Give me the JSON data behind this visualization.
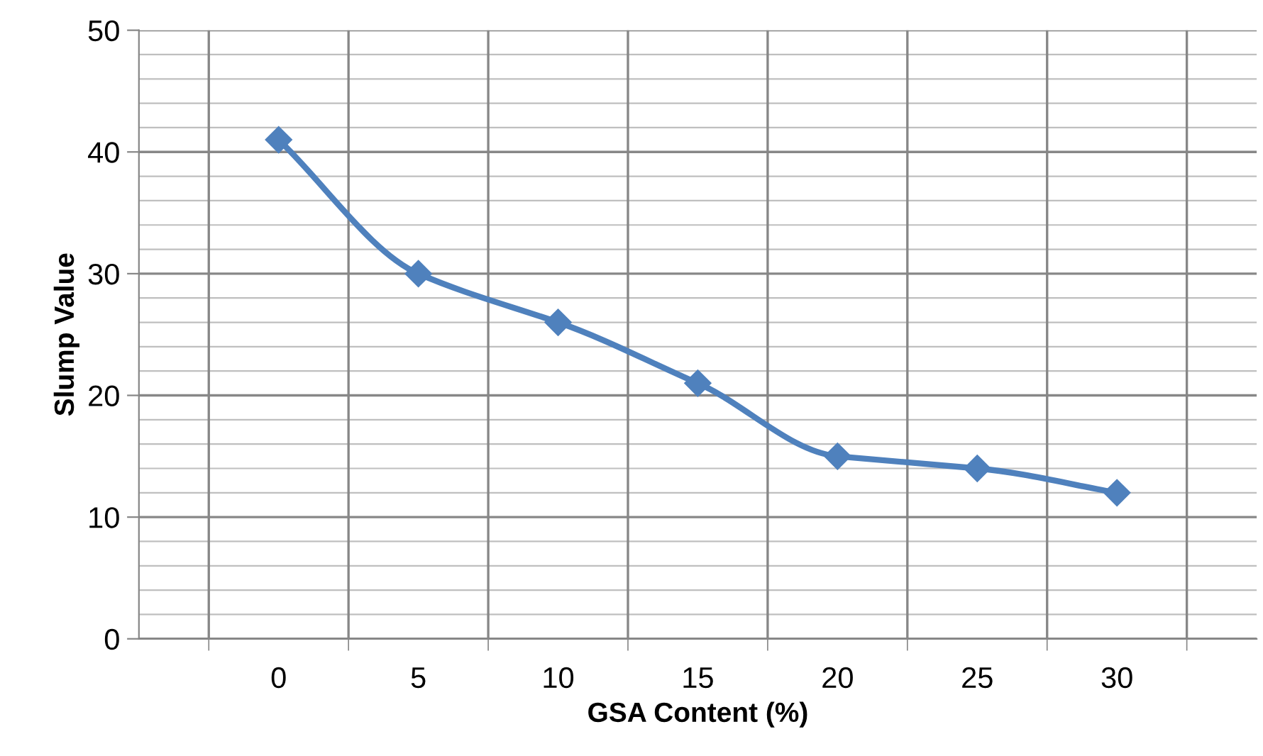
{
  "chart_data": {
    "type": "line",
    "xlabel": "GSA Content (%)",
    "ylabel": "Slump Value",
    "categories": [
      "0",
      "5",
      "10",
      "15",
      "20",
      "25",
      "30"
    ],
    "series": [
      {
        "color": "#4f81bd",
        "values": [
          41,
          30,
          26,
          21,
          15,
          14,
          12
        ]
      }
    ],
    "ylim": [
      0,
      50
    ],
    "yticks": [
      0,
      {
        "value": 2,
        "label": null
      },
      {
        "value": 4,
        "label": null
      },
      {
        "value": 6,
        "label": null
      },
      {
        "value": 8,
        "label": null
      },
      10,
      {
        "value": 12,
        "label": null
      },
      {
        "value": 14,
        "label": null
      },
      {
        "value": 16,
        "label": null
      },
      {
        "value": 18,
        "label": null
      },
      20,
      {
        "value": 22,
        "label": null
      },
      {
        "value": 24,
        "label": null
      },
      {
        "value": 26,
        "label": null
      },
      {
        "value": 28,
        "label": null
      },
      30,
      {
        "value": 32,
        "label": null
      },
      {
        "value": 34,
        "label": null
      },
      {
        "value": 36,
        "label": null
      },
      {
        "value": 38,
        "label": null
      },
      40,
      {
        "value": 42,
        "label": null
      },
      {
        "value": 44,
        "label": null
      },
      {
        "value": 46,
        "label": null
      },
      {
        "value": 48,
        "label": null
      },
      50
    ],
    "grid": true,
    "marker": "diamond",
    "line_style": "solid"
  }
}
